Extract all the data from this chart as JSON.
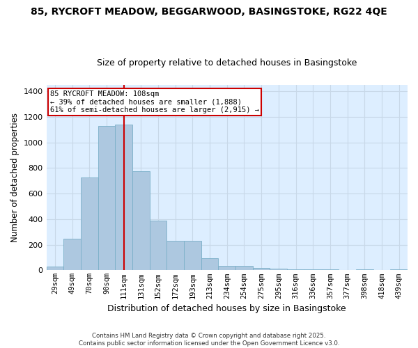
{
  "title": "85, RYCROFT MEADOW, BEGGARWOOD, BASINGSTOKE, RG22 4QE",
  "subtitle": "Size of property relative to detached houses in Basingstoke",
  "xlabel": "Distribution of detached houses by size in Basingstoke",
  "ylabel": "Number of detached properties",
  "categories": [
    "29sqm",
    "49sqm",
    "70sqm",
    "90sqm",
    "111sqm",
    "131sqm",
    "152sqm",
    "172sqm",
    "193sqm",
    "213sqm",
    "234sqm",
    "254sqm",
    "275sqm",
    "295sqm",
    "316sqm",
    "336sqm",
    "357sqm",
    "377sqm",
    "398sqm",
    "418sqm",
    "439sqm"
  ],
  "values": [
    30,
    245,
    725,
    1130,
    1140,
    775,
    390,
    230,
    230,
    95,
    35,
    35,
    20,
    15,
    10,
    10,
    10,
    0,
    5,
    0,
    5
  ],
  "bar_color": "#adc8e0",
  "bar_edge_color": "#7aafc8",
  "annotation_text1": "85 RYCROFT MEADOW: 108sqm",
  "annotation_text2": "← 39% of detached houses are smaller (1,888)",
  "annotation_text3": "61% of semi-detached houses are larger (2,915) →",
  "annotation_box_color": "#ffffff",
  "annotation_box_edge": "#cc0000",
  "vline_color": "#cc0000",
  "vline_index": 4.0,
  "ylim": [
    0,
    1450
  ],
  "yticks": [
    0,
    200,
    400,
    600,
    800,
    1000,
    1200,
    1400
  ],
  "grid_color": "#c8d8e8",
  "bg_color": "#ddeeff",
  "footer": "Contains HM Land Registry data © Crown copyright and database right 2025.\nContains public sector information licensed under the Open Government Licence v3.0.",
  "title_fontsize": 10,
  "subtitle_fontsize": 9,
  "bar_width": 1.0
}
